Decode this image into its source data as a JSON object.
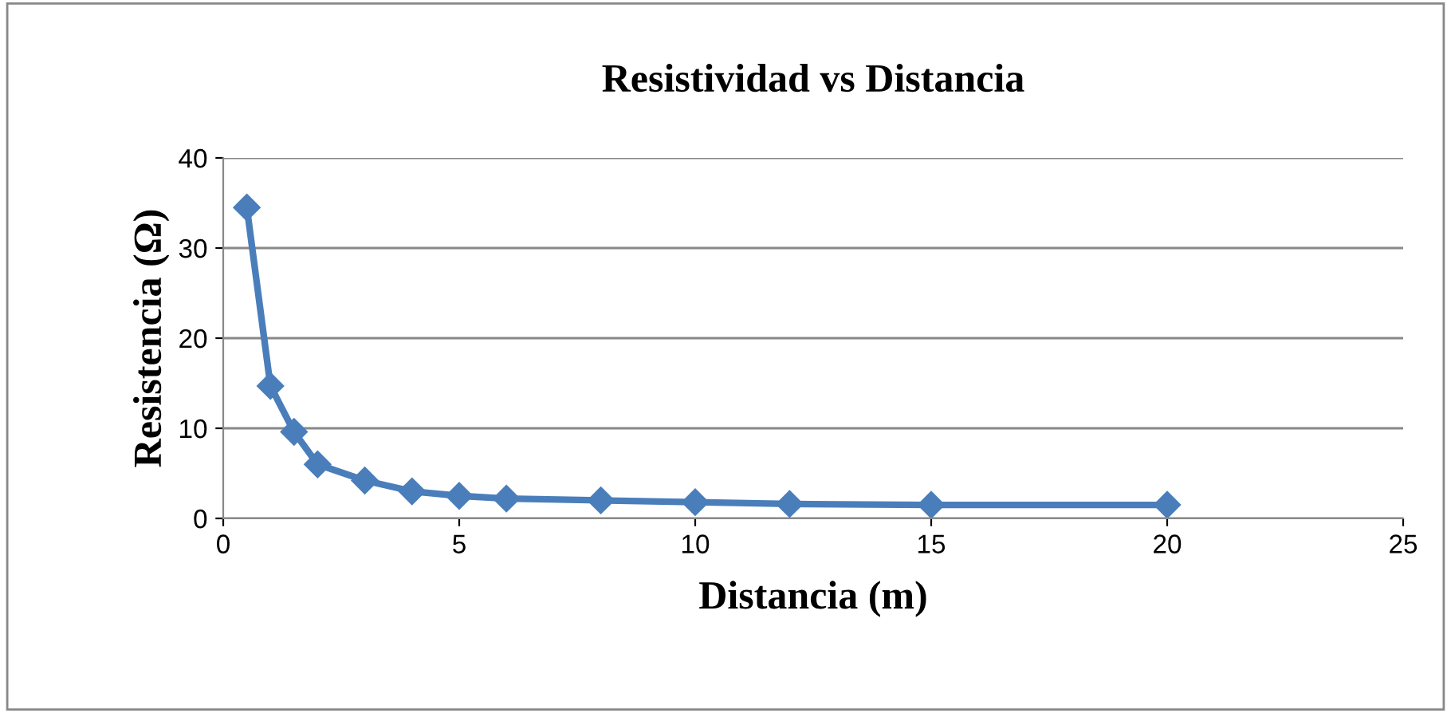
{
  "chart_data": {
    "type": "line",
    "title": "Resistividad vs Distancia",
    "xlabel": "Distancia (m)",
    "ylabel": "Resistencia (Ω)",
    "x": [
      0.5,
      1,
      1.5,
      2,
      3,
      4,
      5,
      6,
      8,
      10,
      12,
      15,
      20
    ],
    "series": [
      {
        "color": "#4a7ebb",
        "values": [
          34.5,
          14.7,
          9.6,
          6.0,
          4.2,
          3.0,
          2.5,
          2.2,
          2.0,
          1.8,
          1.6,
          1.5,
          1.5
        ]
      }
    ],
    "xlim": [
      0,
      25
    ],
    "xticks": [
      0,
      5,
      10,
      15,
      20,
      25
    ],
    "ylim": [
      0,
      40
    ],
    "yticks": [
      0,
      10,
      20,
      30,
      40
    ],
    "grid": "y",
    "legend": false,
    "marker": "diamond",
    "line_style": "solid"
  }
}
